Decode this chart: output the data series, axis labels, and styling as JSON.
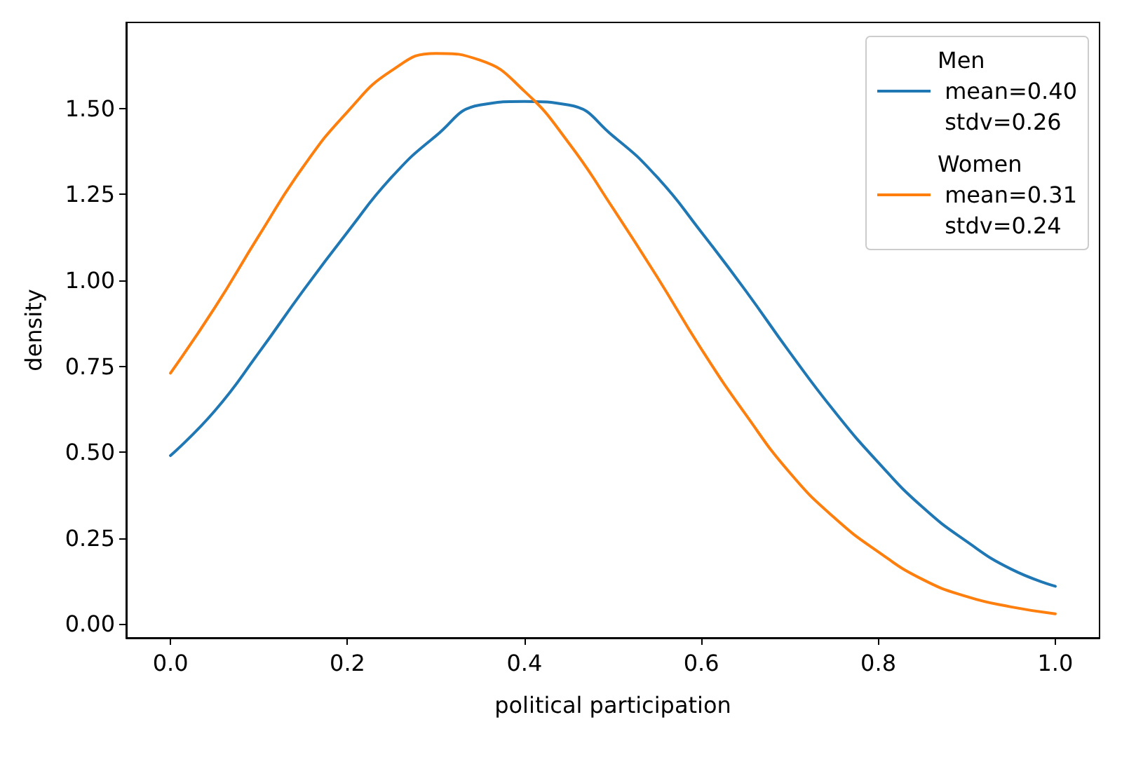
{
  "chart_data": {
    "type": "line",
    "xlabel": "political participation",
    "ylabel": "density",
    "x": [
      0,
      0.05,
      0.1,
      0.15,
      0.2,
      0.25,
      0.3,
      0.35,
      0.4,
      0.45,
      0.5,
      0.55,
      0.6,
      0.65,
      0.7,
      0.75,
      0.8,
      0.85,
      0.9,
      0.95,
      1.0
    ],
    "series": [
      {
        "name": "Men\n mean=0.40\n stdv=0.26",
        "color": "#1f77b4",
        "values": [
          0.49,
          0.62,
          0.79,
          0.97,
          1.14,
          1.3,
          1.42,
          1.51,
          1.52,
          1.51,
          1.42,
          1.3,
          1.14,
          0.97,
          0.79,
          0.62,
          0.47,
          0.34,
          0.24,
          0.16,
          0.11
        ]
      },
      {
        "name": "Women\n mean=0.31\n stdv=0.24",
        "color": "#ff7f0e",
        "values": [
          0.73,
          0.92,
          1.13,
          1.33,
          1.49,
          1.61,
          1.66,
          1.64,
          1.55,
          1.4,
          1.21,
          1.01,
          0.8,
          0.61,
          0.44,
          0.31,
          0.21,
          0.13,
          0.08,
          0.05,
          0.03
        ]
      }
    ],
    "xlim": [
      -0.05,
      1.05
    ],
    "xticks": [
      {
        "value": 0,
        "label": "0.0"
      },
      {
        "value": 0.2,
        "label": "0.2"
      },
      {
        "value": 0.4,
        "label": "0.4"
      },
      {
        "value": 0.6,
        "label": "0.6"
      },
      {
        "value": 0.8,
        "label": "0.8"
      },
      {
        "value": 1,
        "label": "1.0"
      }
    ],
    "ylim": [
      -0.04,
      1.75
    ],
    "yticks": [
      {
        "value": 0,
        "label": "0.00"
      },
      {
        "value": 0.25,
        "label": "0.25"
      },
      {
        "value": 0.5,
        "label": "0.50"
      },
      {
        "value": 0.75,
        "label": "0.75"
      },
      {
        "value": 1,
        "label": "1.00"
      },
      {
        "value": 1.25,
        "label": "1.25"
      },
      {
        "value": 1.5,
        "label": "1.50"
      }
    ],
    "grid": false,
    "legend": "top right",
    "marker": "none",
    "line_style": "solid"
  }
}
